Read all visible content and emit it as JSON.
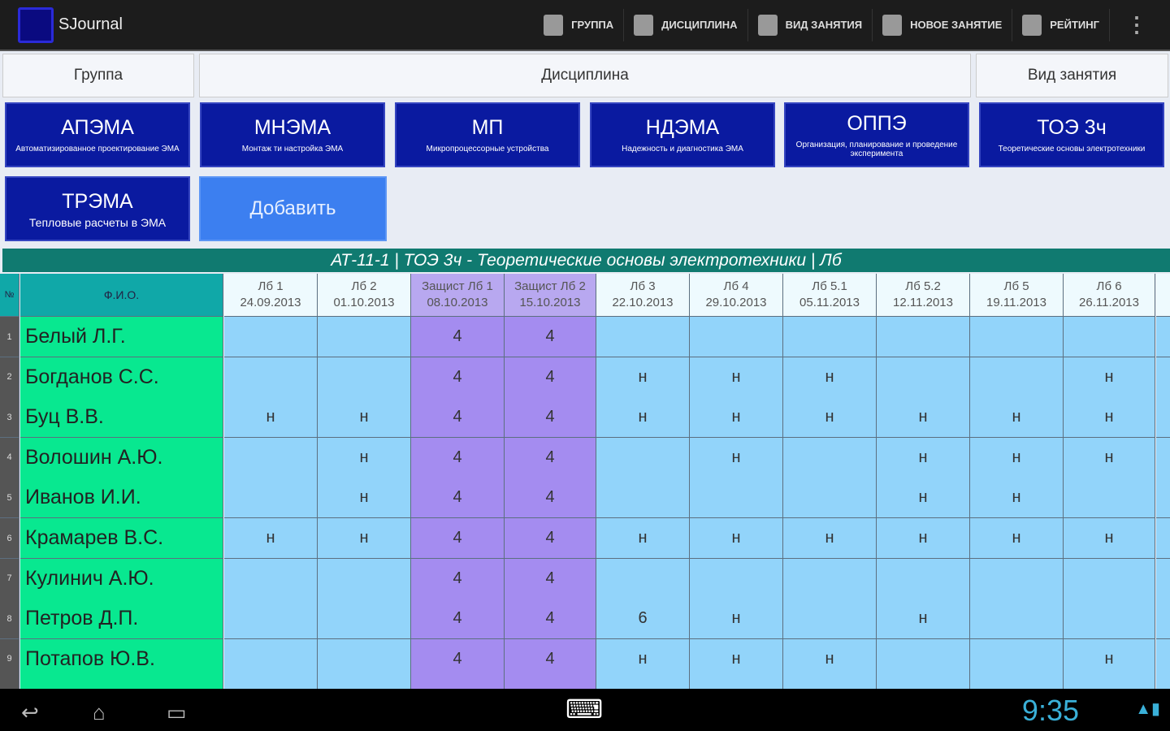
{
  "app": {
    "title": "SJournal"
  },
  "actions": [
    {
      "label": "ГРУППА",
      "icon": "group-icon"
    },
    {
      "label": "ДИСЦИПЛИНА",
      "icon": "clipboard-icon"
    },
    {
      "label": "ВИД ЗАНЯТИЯ",
      "icon": "phone-icon"
    },
    {
      "label": "НОВОЕ ЗАНЯТИЕ",
      "icon": "edit-icon"
    },
    {
      "label": "РЕЙТИНГ",
      "icon": "eye-icon"
    }
  ],
  "tabs": {
    "group": "Группа",
    "discipline": "Дисциплина",
    "lesson_type": "Вид занятия"
  },
  "disciplines": [
    {
      "code": "АПЭМА",
      "name": "Автоматизированное проектирование ЭМА"
    },
    {
      "code": "МНЭМА",
      "name": "Монтаж ти настройка ЭМА"
    },
    {
      "code": "МП",
      "name": "Микропроцессорные устройства"
    },
    {
      "code": "НДЭМА",
      "name": "Надежность и диагностика ЭМА"
    },
    {
      "code": "ОППЭ",
      "name": "Организация, планирование и проведение эксперимента"
    },
    {
      "code": "ТОЭ 3ч",
      "name": "Теоретические основы электротехники"
    },
    {
      "code": "ТРЭМА",
      "name": "Тепловые расчеты в ЭМА"
    }
  ],
  "add_label": "Добавить",
  "caption": "АТ-11-1  |  ТОЭ 3ч - Теоретические основы электротехники  |  Лб",
  "table": {
    "num_header": "№",
    "fio_header": "Ф.И.О.",
    "columns": [
      {
        "title": "Лб 1",
        "date": "24.09.2013",
        "defense": false
      },
      {
        "title": "Лб 2",
        "date": "01.10.2013",
        "defense": false
      },
      {
        "title": "Защист Лб 1",
        "date": "08.10.2013",
        "defense": true
      },
      {
        "title": "Защист Лб 2",
        "date": "15.10.2013",
        "defense": true
      },
      {
        "title": "Лб 3",
        "date": "22.10.2013",
        "defense": false
      },
      {
        "title": "Лб 4",
        "date": "29.10.2013",
        "defense": false
      },
      {
        "title": "Лб 5.1",
        "date": "05.11.2013",
        "defense": false
      },
      {
        "title": "Лб 5.2",
        "date": "12.11.2013",
        "defense": false
      },
      {
        "title": "Лб 5",
        "date": "19.11.2013",
        "defense": false
      },
      {
        "title": "Лб 6",
        "date": "26.11.2013",
        "defense": false
      }
    ],
    "rows": [
      {
        "n": "1",
        "fio": "Белый Л.Г.",
        "v": [
          "",
          "",
          "4",
          "4",
          "",
          "",
          "",
          "",
          "",
          ""
        ]
      },
      {
        "n": "2",
        "fio": "Богданов С.С.",
        "v": [
          "",
          "",
          "4",
          "4",
          "н",
          "н",
          "н",
          "",
          "",
          "н"
        ]
      },
      {
        "n": "3",
        "fio": "Буц В.В.",
        "v": [
          "н",
          "н",
          "4",
          "4",
          "н",
          "н",
          "н",
          "н",
          "н",
          "н"
        ]
      },
      {
        "n": "4",
        "fio": "Волошин А.Ю.",
        "v": [
          "",
          "н",
          "4",
          "4",
          "",
          "н",
          "",
          "н",
          "н",
          "н"
        ]
      },
      {
        "n": "5",
        "fio": "Иванов И.И.",
        "v": [
          "",
          "н",
          "4",
          "4",
          "",
          "",
          "",
          "н",
          "н",
          ""
        ]
      },
      {
        "n": "6",
        "fio": "Крамарев В.С.",
        "v": [
          "н",
          "н",
          "4",
          "4",
          "н",
          "н",
          "н",
          "н",
          "н",
          "н"
        ]
      },
      {
        "n": "7",
        "fio": "Кулинич А.Ю.",
        "v": [
          "",
          "",
          "4",
          "4",
          "",
          "",
          "",
          "",
          "",
          ""
        ]
      },
      {
        "n": "8",
        "fio": "Петров Д.П.",
        "v": [
          "",
          "",
          "4",
          "4",
          "6",
          "н",
          "",
          "н",
          "",
          ""
        ]
      },
      {
        "n": "9",
        "fio": "Потапов Ю.В.",
        "v": [
          "",
          "",
          "4",
          "4",
          "н",
          "н",
          "н",
          "",
          "",
          "н"
        ]
      }
    ]
  },
  "status": {
    "time": "9:35"
  }
}
